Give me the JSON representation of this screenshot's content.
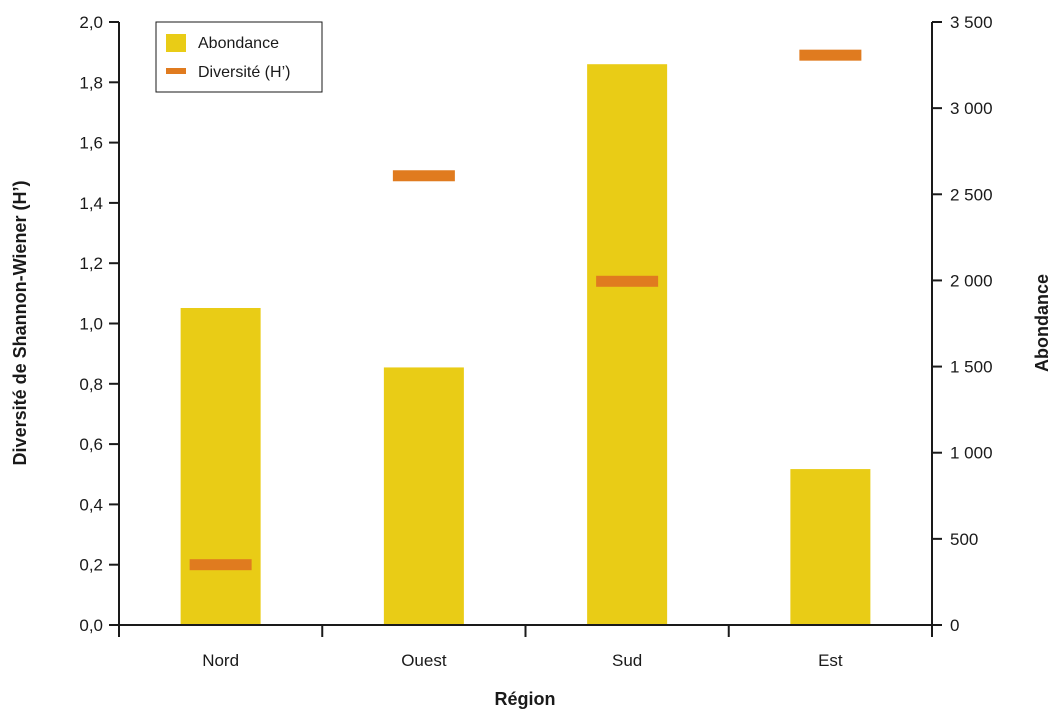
{
  "chart_data": {
    "type": "bar",
    "xlabel": "Région",
    "ylabel_left": "Diversité de Shannon-Wiener (H’)",
    "ylabel_right": "Abondance",
    "categories": [
      "Nord",
      "Ouest",
      "Sud",
      "Est"
    ],
    "series": [
      {
        "name": "Abondance",
        "kind": "bar",
        "axis": "right",
        "color": "#e9cc16",
        "values": [
          1840,
          1495,
          3255,
          905
        ]
      },
      {
        "name": "Diversité (H’)",
        "kind": "marker",
        "axis": "left",
        "color": "#e07b1f",
        "values": [
          0.2,
          1.49,
          1.14,
          1.89
        ]
      }
    ],
    "ylim_left": [
      0,
      2.0
    ],
    "yticks_left": [
      "0,0",
      "0,2",
      "0,4",
      "0,6",
      "0,8",
      "1,0",
      "1,2",
      "1,4",
      "1,6",
      "1,8",
      "2,0"
    ],
    "ylim_right": [
      0,
      3500
    ],
    "yticks_right": [
      "0",
      "500",
      "1 000",
      "1 500",
      "2 000",
      "2 500",
      "3 000",
      "3 500"
    ],
    "legend_position": "top-left",
    "grid": false
  }
}
